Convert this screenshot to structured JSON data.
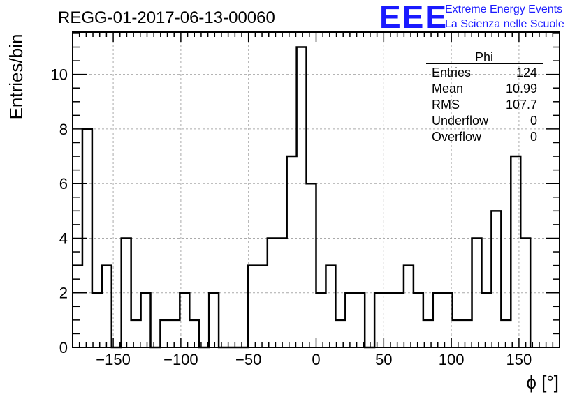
{
  "chart_data": {
    "type": "bar",
    "title": "REGG-01-2017-06-13-00060",
    "xlabel": "ϕ [°]",
    "ylabel": "Entries/bin",
    "xlim": [
      -180,
      180
    ],
    "ylim": [
      0,
      11.55
    ],
    "bin_width": 7.2,
    "x_ticks": [
      -150,
      -100,
      -50,
      0,
      50,
      100,
      150
    ],
    "x_tick_labels": [
      "−150",
      "−100",
      "−50",
      "0",
      "50",
      "100",
      "150"
    ],
    "y_ticks": [
      0,
      2,
      4,
      6,
      8,
      10
    ],
    "y_tick_labels": [
      "0",
      "2",
      "4",
      "6",
      "8",
      "10"
    ],
    "grid": true,
    "legend": "none",
    "values": [
      3,
      8,
      2,
      3,
      0,
      4,
      1,
      2,
      0,
      1,
      1,
      2,
      1,
      0,
      2,
      0,
      0,
      0,
      3,
      3,
      4,
      4,
      7,
      11,
      6,
      2,
      3,
      1,
      2,
      2,
      0,
      2,
      2,
      2,
      3,
      2,
      1,
      2,
      2,
      1,
      1,
      4,
      2,
      5,
      1,
      7,
      4
    ]
  },
  "stats_box": {
    "title": "Phi",
    "rows": [
      {
        "label": "Entries",
        "value": "124"
      },
      {
        "label": "Mean",
        "value": "10.99"
      },
      {
        "label": "RMS",
        "value": "107.7"
      },
      {
        "label": "Underflow",
        "value": "0"
      },
      {
        "label": "Overflow",
        "value": "0"
      }
    ]
  },
  "logo": {
    "mark": "EEE",
    "line1": "Extreme Energy Events",
    "line2": "La Scienza nelle Scuole",
    "color": "#1a1aff"
  }
}
